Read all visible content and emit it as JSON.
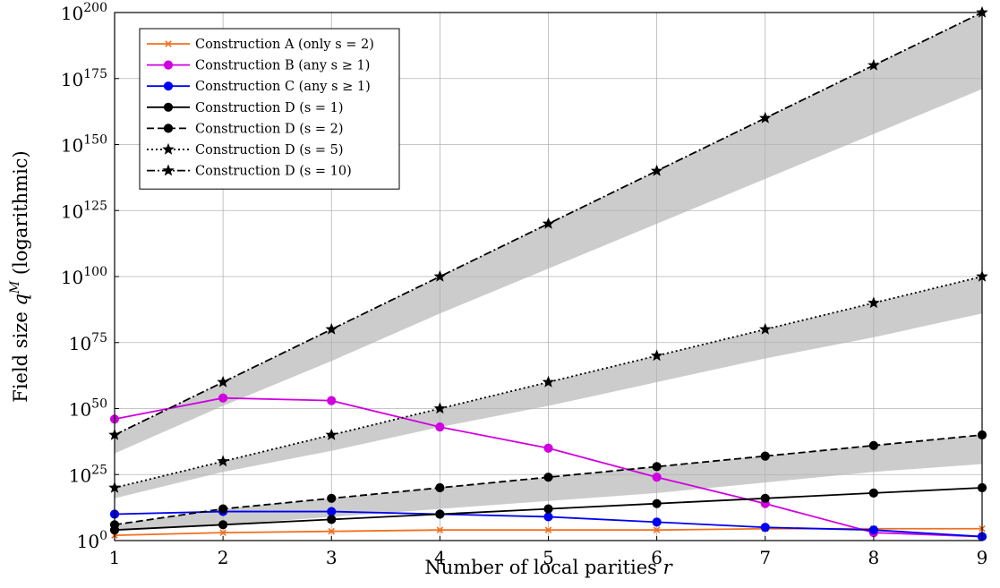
{
  "chart_data": {
    "type": "line",
    "xlabel": "Number of local parities r",
    "ylabel": "Field size q^M (logarithmic)",
    "y_scale": "log10",
    "xlim": [
      1,
      9
    ],
    "ylim_log10": [
      0,
      200
    ],
    "x_ticks": [
      "1",
      "2",
      "3",
      "4",
      "5",
      "6",
      "7",
      "8",
      "9"
    ],
    "y_ticks": [
      {
        "base": "10",
        "exp": "0",
        "log10": 0
      },
      {
        "base": "10",
        "exp": "25",
        "log10": 25
      },
      {
        "base": "10",
        "exp": "50",
        "log10": 50
      },
      {
        "base": "10",
        "exp": "75",
        "log10": 75
      },
      {
        "base": "10",
        "exp": "100",
        "log10": 100
      },
      {
        "base": "10",
        "exp": "125",
        "log10": 125
      },
      {
        "base": "10",
        "exp": "150",
        "log10": 150
      },
      {
        "base": "10",
        "exp": "175",
        "log10": 175
      },
      {
        "base": "10",
        "exp": "200",
        "log10": 200
      }
    ],
    "grid": true,
    "legend_position": "top-left",
    "x": [
      1,
      2,
      3,
      4,
      5,
      6,
      7,
      8,
      9
    ],
    "series": [
      {
        "name": "Construction A (only s = 2)",
        "color": "#f07020",
        "dash": "",
        "marker": "x",
        "log10_values": [
          2,
          3,
          3.5,
          4,
          4,
          4,
          4.5,
          4.5,
          4.5
        ]
      },
      {
        "name": "Construction B (any s ≥ 1)",
        "color": "#d000e0",
        "dash": "",
        "marker": "circle",
        "log10_values": [
          46,
          54,
          53,
          43,
          35,
          24,
          14,
          3,
          -3
        ]
      },
      {
        "name": "Construction C (any s ≥ 1)",
        "color": "#0000f0",
        "dash": "",
        "marker": "circle",
        "log10_values": [
          10,
          11,
          11,
          10,
          9,
          7,
          5,
          4,
          1
        ]
      },
      {
        "name": "Construction D (s = 1)",
        "color": "#000000",
        "dash": "",
        "marker": "circle",
        "log10_values": [
          4,
          6,
          8,
          10,
          12,
          14,
          16,
          18,
          20
        ]
      },
      {
        "name": "Construction D (s = 2)",
        "color": "#000000",
        "dash": "8,4",
        "marker": "circle",
        "log10_values": [
          6,
          12,
          16,
          20,
          24,
          28,
          32,
          36,
          40
        ]
      },
      {
        "name": "Construction D (s = 5)",
        "color": "#000000",
        "dash": "2,3",
        "marker": "star",
        "log10_values": [
          20,
          30,
          40,
          50,
          60,
          70,
          80,
          90,
          100
        ]
      },
      {
        "name": "Construction D (s = 10)",
        "color": "#000000",
        "dash": "9,3,2,3",
        "marker": "star",
        "log10_values": [
          40,
          60,
          80,
          100,
          120,
          140,
          160,
          180,
          200
        ]
      }
    ],
    "bands": [
      {
        "upper_log10": [
          6,
          12,
          16,
          20,
          24,
          28,
          32,
          36,
          40
        ],
        "lower_log10": [
          4,
          6,
          9,
          12,
          15,
          18,
          22,
          26,
          29
        ]
      },
      {
        "upper_log10": [
          20,
          30,
          40,
          50,
          60,
          70,
          80,
          90,
          100
        ],
        "lower_log10": [
          16,
          26,
          34,
          43,
          51,
          60,
          69,
          77,
          86
        ]
      },
      {
        "upper_log10": [
          40,
          60,
          80,
          100,
          120,
          140,
          160,
          180,
          200
        ],
        "lower_log10": [
          33,
          51,
          68,
          86,
          103,
          120,
          137,
          154,
          171
        ]
      }
    ],
    "band_color": "#cccccc"
  }
}
